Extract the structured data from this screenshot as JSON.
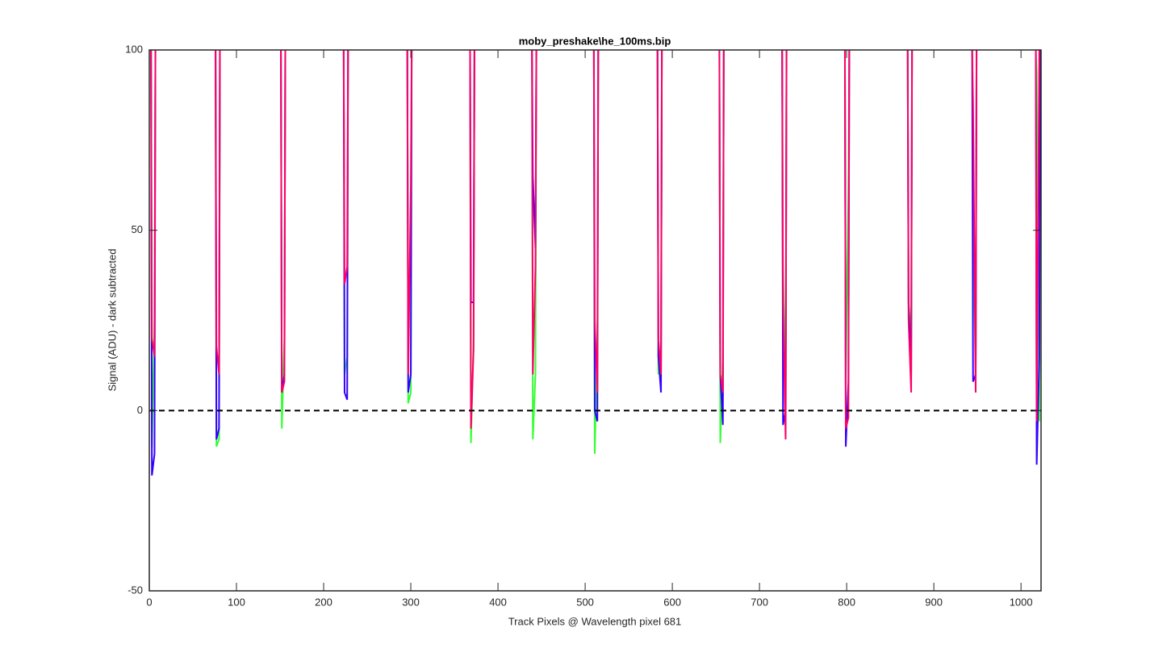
{
  "chart_data": {
    "type": "line",
    "title": "moby_preshake\\he_100ms.bip",
    "xlabel": "Track Pixels @ Wavelength pixel 681",
    "ylabel": "Signal (ADU) - dark subtracted",
    "xlim": [
      0,
      1023
    ],
    "ylim": [
      -50,
      100
    ],
    "xticks": [
      0,
      100,
      200,
      300,
      400,
      500,
      600,
      700,
      800,
      900,
      1000
    ],
    "yticks": [
      -50,
      0,
      50,
      100
    ],
    "hline": 0,
    "x": [
      2,
      3,
      6,
      7,
      8,
      76,
      77,
      80,
      81,
      82,
      151,
      152,
      155,
      156,
      157,
      223,
      224,
      227,
      228,
      229,
      296,
      297,
      300,
      301,
      302,
      368,
      369,
      372,
      373,
      374,
      439,
      440,
      443,
      444,
      445,
      510,
      511,
      514,
      515,
      516,
      583,
      584,
      587,
      588,
      589,
      654,
      655,
      658,
      659,
      660,
      726,
      727,
      730,
      731,
      732,
      798,
      799,
      802,
      803,
      804,
      870,
      871,
      874,
      875,
      876,
      944,
      945,
      948,
      949,
      950,
      1017,
      1018,
      1021,
      1022,
      1023
    ],
    "series": [
      {
        "color": "#33ff33",
        "values": [
          100,
          -10,
          25,
          100,
          null,
          100,
          -10,
          -8,
          100,
          null,
          100,
          -5,
          20,
          100,
          null,
          100,
          10,
          15,
          100,
          null,
          100,
          2,
          5,
          100,
          null,
          100,
          -9,
          20,
          100,
          null,
          100,
          -8,
          10,
          100,
          null,
          100,
          -12,
          20,
          100,
          null,
          100,
          10,
          15,
          100,
          null,
          100,
          -9,
          15,
          100,
          null,
          100,
          40,
          0,
          100,
          null,
          100,
          10,
          60,
          100,
          null,
          100,
          30,
          20,
          100,
          null,
          100,
          50,
          10,
          100,
          null,
          100,
          94,
          -3,
          100,
          null
        ]
      },
      {
        "color": "#3300ff",
        "values": [
          100,
          -18,
          -12,
          100,
          null,
          100,
          -8,
          -5,
          100,
          null,
          100,
          5,
          10,
          100,
          null,
          100,
          5,
          3,
          100,
          null,
          100,
          5,
          10,
          100,
          null,
          100,
          30,
          30,
          100,
          null,
          100,
          65,
          45,
          100,
          null,
          100,
          0,
          -3,
          100,
          null,
          100,
          15,
          5,
          100,
          null,
          100,
          10,
          -4,
          100,
          null,
          100,
          -4,
          0,
          100,
          null,
          100,
          -10,
          8,
          100,
          null,
          100,
          30,
          10,
          100,
          null,
          100,
          8,
          10,
          100,
          null,
          100,
          -15,
          15,
          100,
          null
        ]
      },
      {
        "color": "#ff0066",
        "values": [
          100,
          20,
          15,
          100,
          null,
          100,
          18,
          10,
          100,
          null,
          100,
          5,
          8,
          100,
          null,
          100,
          35,
          40,
          100,
          null,
          100,
          10,
          62,
          100,
          null,
          100,
          -5,
          17,
          100,
          null,
          100,
          10,
          40,
          100,
          null,
          100,
          25,
          5,
          100,
          null,
          100,
          20,
          10,
          100,
          null,
          100,
          10,
          5,
          100,
          null,
          100,
          30,
          -8,
          100,
          null,
          100,
          -5,
          -2,
          100,
          null,
          100,
          25,
          5,
          100,
          null,
          100,
          85,
          5,
          100,
          null,
          100,
          -3,
          100,
          100,
          null
        ]
      }
    ]
  }
}
